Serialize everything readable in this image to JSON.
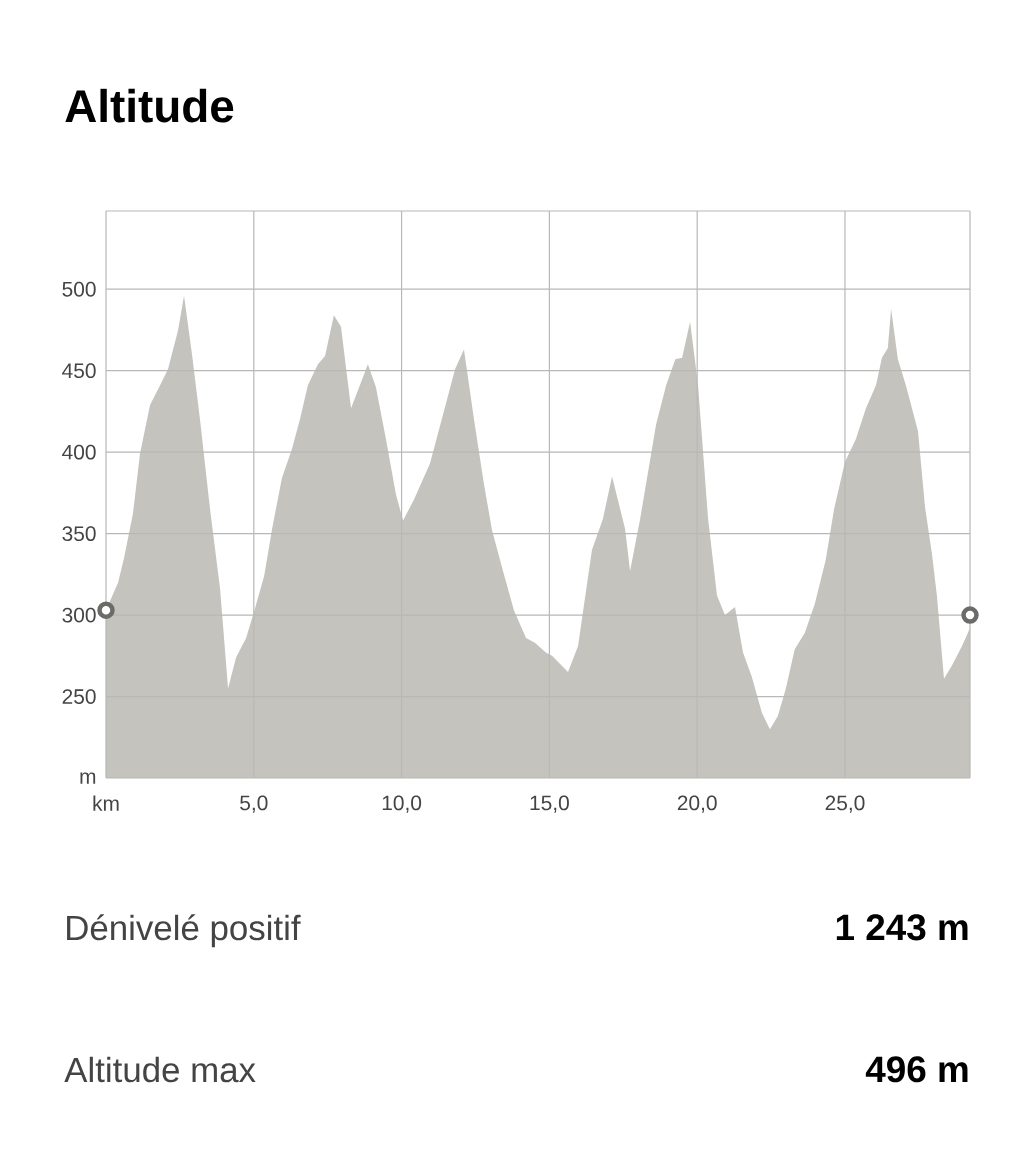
{
  "chart_data": {
    "type": "area",
    "title": "Altitude",
    "series": [
      {
        "color": "#c4c3be",
        "x": [
          0,
          0.41,
          0.61,
          0.91,
          1.15,
          1.49,
          1.83,
          2.1,
          2.44,
          2.64,
          2.91,
          3.18,
          3.52,
          3.86,
          4.13,
          4.4,
          4.74,
          5.04,
          5.35,
          5.62,
          5.95,
          6.29,
          6.56,
          6.83,
          7.17,
          7.41,
          7.71,
          7.95,
          8.29,
          8.59,
          8.86,
          9.13,
          9.47,
          9.81,
          10.05,
          10.42,
          10.96,
          11.4,
          11.81,
          12.11,
          12.45,
          12.79,
          13.06,
          13.4,
          13.8,
          14.21,
          14.51,
          14.88,
          15.09,
          15.63,
          15.97,
          16.44,
          16.81,
          17.12,
          17.56,
          17.73,
          18.07,
          18.61,
          18.95,
          19.26,
          19.49,
          19.76,
          20.03,
          20.37,
          20.67,
          20.94,
          21.28,
          21.55,
          21.85,
          22.19,
          22.46,
          22.73,
          23.0,
          23.3,
          23.64,
          23.98,
          24.35,
          24.63,
          25.0,
          25.37,
          25.71,
          26.05,
          26.25,
          26.45,
          26.56,
          26.79,
          27.06,
          27.47,
          27.71,
          27.94,
          28.11,
          28.35,
          28.62,
          28.96,
          29.23
        ],
        "values": [
          303,
          320,
          335,
          362,
          399,
          429,
          441,
          451,
          475,
          496,
          460,
          420,
          365,
          316,
          255,
          274,
          286,
          304,
          324,
          353,
          384,
          402,
          420,
          441,
          454,
          459,
          484,
          477,
          427,
          441,
          454,
          440,
          408,
          374,
          358,
          371,
          393,
          423,
          451,
          463,
          420,
          380,
          352,
          329,
          303,
          286,
          283,
          277,
          275,
          265,
          281,
          340,
          359,
          385,
          353,
          327,
          359,
          417,
          441,
          457,
          458,
          480,
          441,
          359,
          312,
          300,
          305,
          277,
          262,
          240,
          230,
          238,
          255,
          279,
          289,
          307,
          334,
          365,
          394,
          408,
          427,
          441,
          458,
          464,
          488,
          457,
          441,
          413,
          366,
          338,
          312,
          261,
          269,
          281,
          292
        ]
      },
      {
        "type": "scatter",
        "color": "#6b6b67",
        "marker": "circle",
        "x": [
          0,
          29.23
        ],
        "values": [
          303,
          300
        ]
      }
    ],
    "xlim": [
      0,
      29.23
    ],
    "ylim": [
      200,
      548
    ],
    "xticks": [
      {
        "value": 0,
        "label": "km"
      },
      {
        "value": 5,
        "label": "5,0"
      },
      {
        "value": 10,
        "label": "10,0"
      },
      {
        "value": 15,
        "label": "15,0"
      },
      {
        "value": 20,
        "label": "20,0"
      },
      {
        "value": 25,
        "label": "25,0"
      },
      {
        "value": 29.23,
        "label": null
      }
    ],
    "yticks": [
      {
        "value": 200,
        "label": "m"
      },
      250,
      300,
      350,
      400,
      450,
      500,
      {
        "value": 548,
        "label": null
      }
    ],
    "grid": true,
    "annotations": [
      "Dénivelé positif",
      "**1 243 m**",
      "Altitude max",
      "**496 m**"
    ]
  }
}
